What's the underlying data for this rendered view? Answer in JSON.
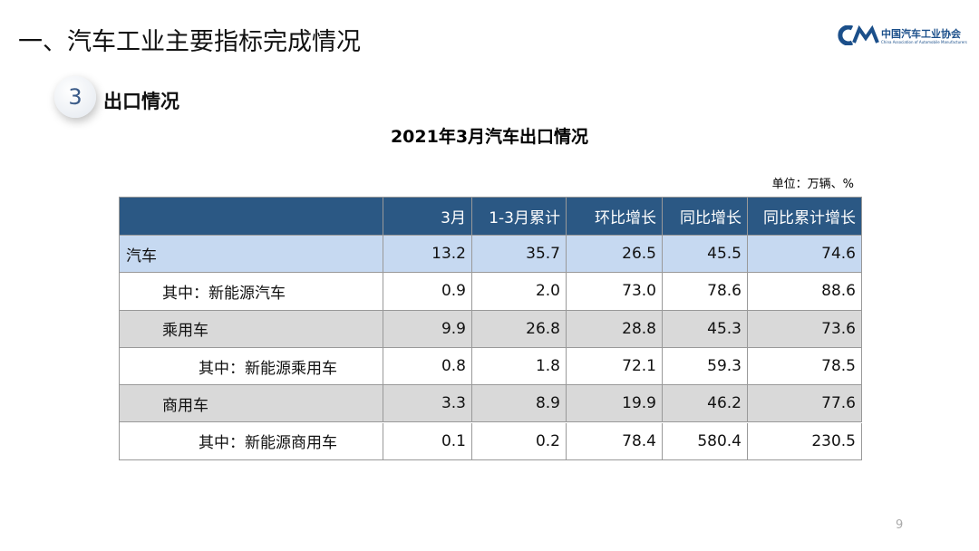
{
  "header": {
    "title": "一、汽车工业主要指标完成情况",
    "logo_cn": "中国汽车工业协会",
    "logo_en": "China Association of Automobile Manufacturers"
  },
  "section": {
    "number": "3",
    "title": "出口情况"
  },
  "table": {
    "title": "2021年3月汽车出口情况",
    "unit": "单位：万辆、%",
    "columns": [
      "3月",
      "1-3月累计",
      "环比增长",
      "同比增长",
      "同比累计增长"
    ],
    "rows": [
      {
        "label": "汽车",
        "values": [
          "13.2",
          "35.7",
          "26.5",
          "45.5",
          "74.6"
        ]
      },
      {
        "label": "其中：新能源汽车",
        "values": [
          "0.9",
          "2.0",
          "73.0",
          "78.6",
          "88.6"
        ]
      },
      {
        "label": "乘用车",
        "values": [
          "9.9",
          "26.8",
          "28.8",
          "45.3",
          "73.6"
        ]
      },
      {
        "label": "其中：新能源乘用车",
        "values": [
          "0.8",
          "1.8",
          "72.1",
          "59.3",
          "78.5"
        ]
      },
      {
        "label": "商用车",
        "values": [
          "3.3",
          "8.9",
          "19.9",
          "46.2",
          "77.6"
        ]
      },
      {
        "label": "其中：新能源商用车",
        "values": [
          "0.1",
          "0.2",
          "78.4",
          "580.4",
          "230.5"
        ]
      }
    ]
  },
  "page_number": "9"
}
